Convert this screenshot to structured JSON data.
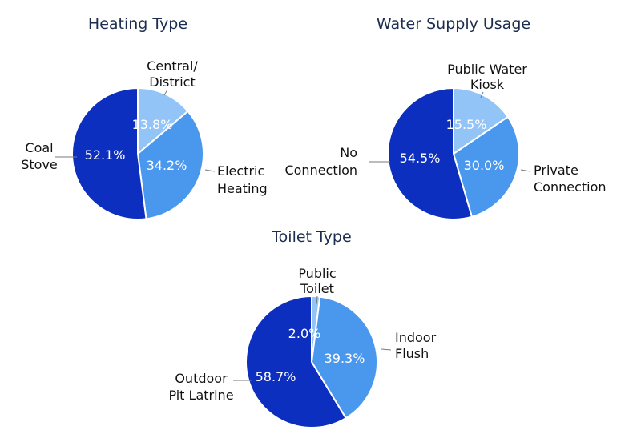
{
  "chart_data": [
    {
      "type": "pie",
      "title": "Heating Type",
      "categories": [
        "Central/ District",
        "Electric Heating",
        "Coal Stove"
      ],
      "category_lines": [
        [
          "Central/",
          "District"
        ],
        [
          "Electric",
          "Heating"
        ],
        [
          "Coal",
          "Stove"
        ]
      ],
      "values": [
        13.8,
        34.2,
        52.1
      ],
      "value_labels": [
        "13.8%",
        "34.2%",
        "52.1%"
      ],
      "colors": [
        "#93c4f7",
        "#4a97ee",
        "#0d2fc0"
      ],
      "start": "12 o'clock, clockwise",
      "legend": "none (slice labels outside)"
    },
    {
      "type": "pie",
      "title": "Water Supply Usage",
      "categories": [
        "Public Water Kiosk",
        "Private Connection",
        "No Connection"
      ],
      "category_lines": [
        [
          "Public Water",
          "Kiosk"
        ],
        [
          "Private",
          "Connection"
        ],
        [
          "No",
          "Connection"
        ]
      ],
      "values": [
        15.5,
        30.0,
        54.5
      ],
      "value_labels": [
        "15.5%",
        "30.0%",
        "54.5%"
      ],
      "colors": [
        "#93c4f7",
        "#4a97ee",
        "#0d2fc0"
      ],
      "start": "12 o'clock, clockwise",
      "legend": "none (slice labels outside)"
    },
    {
      "type": "pie",
      "title": "Toilet Type",
      "categories": [
        "Public Toilet",
        "Indoor Flush",
        "Outdoor Pit Latrine"
      ],
      "category_lines": [
        [
          "Public",
          "Toilet"
        ],
        [
          "Indoor",
          "Flush"
        ],
        [
          "Outdoor",
          "Pit Latrine"
        ]
      ],
      "values": [
        2.0,
        39.3,
        58.7
      ],
      "value_labels": [
        "2.0%",
        "39.3%",
        "58.7%"
      ],
      "colors": [
        "#93c4f7",
        "#4a97ee",
        "#0d2fc0"
      ],
      "start": "12 o'clock, clockwise",
      "legend": "none (slice labels outside)"
    }
  ]
}
